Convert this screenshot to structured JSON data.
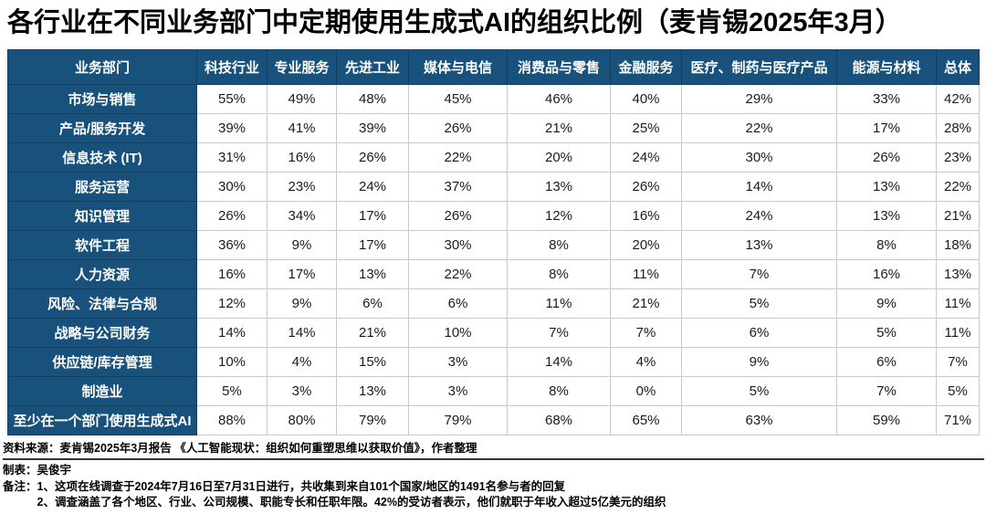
{
  "title": "各行业在不同业务部门中定期使用生成式AI的组织比例（麦肯锡2025年3月）",
  "chart_data": {
    "type": "table",
    "columns": [
      "业务部门",
      "科技行业",
      "专业服务",
      "先进工业",
      "媒体与电信",
      "消费品与零售",
      "金融服务",
      "医疗、制药与医疗产品",
      "能源与材料",
      "总体"
    ],
    "rows": [
      {
        "label": "市场与销售",
        "values": [
          "55%",
          "49%",
          "48%",
          "45%",
          "46%",
          "40%",
          "29%",
          "33%",
          "42%"
        ]
      },
      {
        "label": "产品/服务开发",
        "values": [
          "39%",
          "41%",
          "39%",
          "26%",
          "21%",
          "25%",
          "22%",
          "17%",
          "28%"
        ]
      },
      {
        "label": "信息技术 (IT)",
        "values": [
          "31%",
          "16%",
          "26%",
          "22%",
          "20%",
          "24%",
          "30%",
          "26%",
          "23%"
        ]
      },
      {
        "label": "服务运营",
        "values": [
          "30%",
          "23%",
          "24%",
          "37%",
          "13%",
          "26%",
          "14%",
          "13%",
          "22%"
        ]
      },
      {
        "label": "知识管理",
        "values": [
          "26%",
          "34%",
          "17%",
          "26%",
          "12%",
          "16%",
          "24%",
          "13%",
          "21%"
        ]
      },
      {
        "label": "软件工程",
        "values": [
          "36%",
          "9%",
          "17%",
          "30%",
          "8%",
          "20%",
          "13%",
          "8%",
          "18%"
        ]
      },
      {
        "label": "人力资源",
        "values": [
          "16%",
          "17%",
          "13%",
          "22%",
          "8%",
          "11%",
          "7%",
          "16%",
          "13%"
        ]
      },
      {
        "label": "风险、法律与合规",
        "values": [
          "12%",
          "9%",
          "6%",
          "6%",
          "11%",
          "21%",
          "5%",
          "9%",
          "11%"
        ]
      },
      {
        "label": "战略与公司财务",
        "values": [
          "14%",
          "14%",
          "21%",
          "10%",
          "7%",
          "7%",
          "6%",
          "5%",
          "11%"
        ]
      },
      {
        "label": "供应链/库存管理",
        "values": [
          "10%",
          "4%",
          "15%",
          "3%",
          "14%",
          "4%",
          "9%",
          "6%",
          "7%"
        ]
      },
      {
        "label": "制造业",
        "values": [
          "5%",
          "3%",
          "13%",
          "3%",
          "8%",
          "0%",
          "5%",
          "7%",
          "5%"
        ]
      },
      {
        "label": "至少在一个部门使用生成式AI",
        "values": [
          "88%",
          "80%",
          "79%",
          "79%",
          "68%",
          "65%",
          "63%",
          "59%",
          "71%"
        ]
      }
    ]
  },
  "footer": {
    "source": "资料来源：麦肯锡2025年3月报告 《人工智能现状：组织如何重塑思维以获取价值》，作者整理",
    "author": "制表：吴俊宇",
    "notes_label": "备注：",
    "notes": [
      "1、这项在线调查于2024年7月16日至7月31日进行，共收集到来自101个国家/地区的1491名参与者的回复",
      "2、调查涵盖了各个地区、行业、公司规模、职能专长和任职年限。42%的受访者表示，他们就职于年收入超过5亿美元的组织"
    ]
  },
  "colors": {
    "header_blue": "#18527C",
    "blue_cell_border": "#0f3e60",
    "data_cell_border": "#c9c9c9",
    "text": "#000000"
  }
}
